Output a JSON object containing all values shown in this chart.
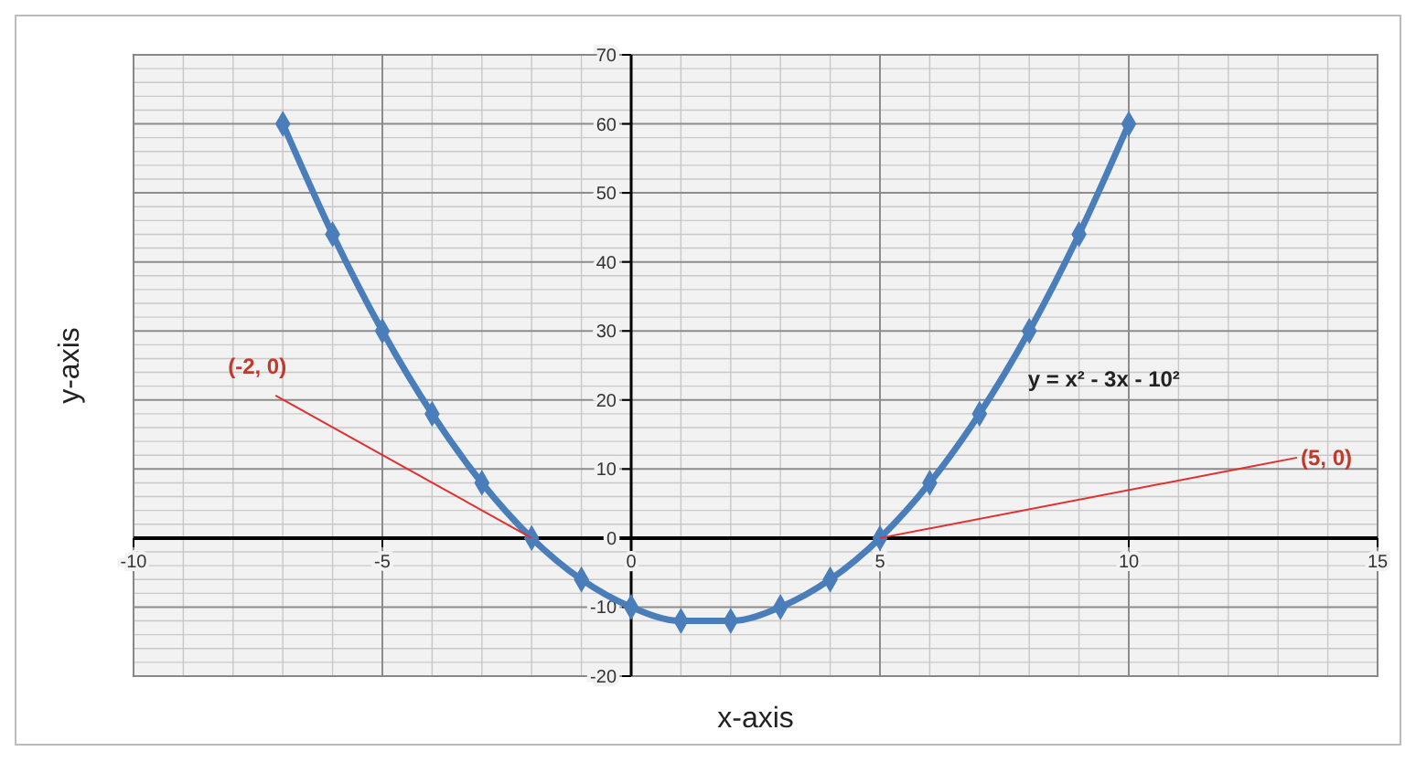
{
  "chart_data": {
    "type": "line",
    "xlabel": "x-axis",
    "ylabel": "y-axis",
    "x": [
      -7,
      -6,
      -5,
      -4,
      -3,
      -2,
      -1,
      0,
      1,
      2,
      3,
      4,
      5,
      6,
      7,
      8,
      9,
      10
    ],
    "series": [
      {
        "color": "#4a7ebb",
        "values": [
          60,
          44,
          30,
          18,
          8,
          0,
          -6,
          -10,
          -12,
          -12,
          -10,
          -6,
          0,
          8,
          18,
          30,
          44,
          60
        ]
      }
    ],
    "xlim": [
      -10,
      15
    ],
    "xticks": [
      -10,
      -5,
      0,
      5,
      10,
      15
    ],
    "ylim": [
      -20,
      70
    ],
    "yticks": [
      -20,
      -10,
      0,
      10,
      20,
      30,
      40,
      50,
      60,
      70
    ],
    "grid": true,
    "marker": "diamond",
    "line_style": "solid",
    "annotations": [
      {
        "text": "(-2, 0)",
        "x": -2,
        "y": 0
      },
      {
        "text": "(5, 0)",
        "x": 5,
        "y": 0
      },
      "y = x² - 3x - 10²"
    ]
  }
}
